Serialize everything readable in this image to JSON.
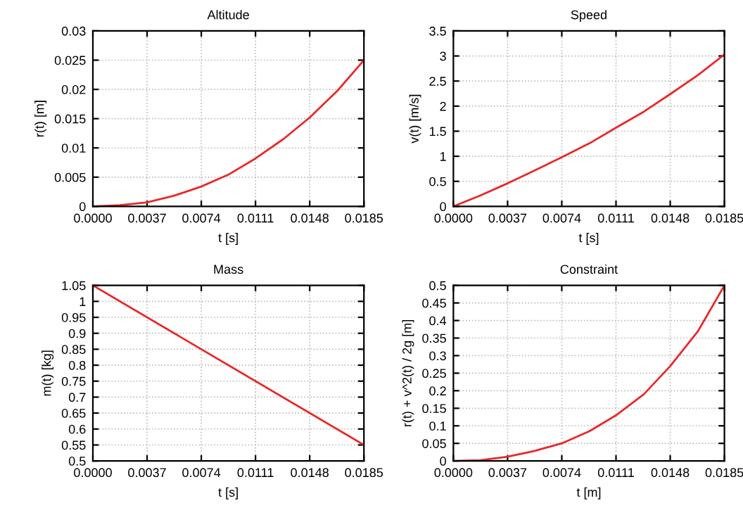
{
  "chart_data": [
    {
      "type": "line",
      "title": "Altitude",
      "xlabel": "t [s]",
      "ylabel": "r(t) [m]",
      "grid": true,
      "x": [
        0,
        0.00185,
        0.0037,
        0.0055,
        0.0074,
        0.0093,
        0.0111,
        0.013,
        0.0148,
        0.0167,
        0.0185
      ],
      "series": [
        {
          "color": "#e8292a",
          "values": [
            0,
            0.0002,
            0.0007,
            0.0018,
            0.0034,
            0.0055,
            0.0082,
            0.0115,
            0.0152,
            0.0198,
            0.025
          ]
        }
      ],
      "xlim": [
        0,
        0.0185
      ],
      "xticks": [
        {
          "value": 0,
          "label": "0.0000"
        },
        {
          "value": 0.0037,
          "label": "0.0037"
        },
        {
          "value": 0.0074,
          "label": "0.0074"
        },
        {
          "value": 0.0111,
          "label": "0.0111"
        },
        {
          "value": 0.0148,
          "label": "0.0148"
        },
        {
          "value": 0.0185,
          "label": "0.0185"
        }
      ],
      "ylim": [
        0,
        0.03
      ],
      "yticks": [
        0,
        0.005,
        0.01,
        0.015,
        0.02,
        0.025,
        0.03
      ]
    },
    {
      "type": "line",
      "title": "Speed",
      "xlabel": "t [s]",
      "ylabel": "v(t) [m/s]",
      "grid": true,
      "x": [
        0,
        0.00185,
        0.0037,
        0.0055,
        0.0074,
        0.0093,
        0.0111,
        0.013,
        0.0148,
        0.0167,
        0.0185
      ],
      "series": [
        {
          "color": "#e8292a",
          "values": [
            0,
            0.22,
            0.46,
            0.71,
            0.98,
            1.26,
            1.57,
            1.89,
            2.24,
            2.62,
            3.03
          ]
        }
      ],
      "xlim": [
        0,
        0.0185
      ],
      "xticks": [
        {
          "value": 0,
          "label": "0.0000"
        },
        {
          "value": 0.0037,
          "label": "0.0037"
        },
        {
          "value": 0.0074,
          "label": "0.0074"
        },
        {
          "value": 0.0111,
          "label": "0.0111"
        },
        {
          "value": 0.0148,
          "label": "0.0148"
        },
        {
          "value": 0.0185,
          "label": "0.0185"
        }
      ],
      "ylim": [
        0,
        3.5
      ],
      "yticks": [
        0,
        0.5,
        1,
        1.5,
        2,
        2.5,
        3,
        3.5
      ]
    },
    {
      "type": "line",
      "title": "Mass",
      "xlabel": "t [s]",
      "ylabel": "m(t) [kg]",
      "grid": true,
      "x": [
        0,
        0.0185
      ],
      "series": [
        {
          "color": "#e8292a",
          "values": [
            1.05,
            0.55
          ]
        }
      ],
      "xlim": [
        0,
        0.0185
      ],
      "xticks": [
        {
          "value": 0,
          "label": "0.0000"
        },
        {
          "value": 0.0037,
          "label": "0.0037"
        },
        {
          "value": 0.0074,
          "label": "0.0074"
        },
        {
          "value": 0.0111,
          "label": "0.0111"
        },
        {
          "value": 0.0148,
          "label": "0.0148"
        },
        {
          "value": 0.0185,
          "label": "0.0185"
        }
      ],
      "ylim": [
        0.5,
        1.05
      ],
      "yticks": [
        0.5,
        0.55,
        0.6,
        0.65,
        0.7,
        0.75,
        0.8,
        0.85,
        0.9,
        0.95,
        1,
        1.05
      ]
    },
    {
      "type": "line",
      "title": "Constraint",
      "xlabel": "t [m]",
      "ylabel": "r(t) + v^2(t) / 2g [m]",
      "grid": true,
      "x": [
        0,
        0.00185,
        0.0037,
        0.0055,
        0.0074,
        0.0093,
        0.0111,
        0.013,
        0.0148,
        0.0167,
        0.0185
      ],
      "series": [
        {
          "color": "#e8292a",
          "values": [
            0,
            0.002,
            0.012,
            0.028,
            0.05,
            0.085,
            0.13,
            0.19,
            0.27,
            0.37,
            0.5
          ]
        }
      ],
      "xlim": [
        0,
        0.0185
      ],
      "xticks": [
        {
          "value": 0,
          "label": "0.0000"
        },
        {
          "value": 0.0037,
          "label": "0.0037"
        },
        {
          "value": 0.0074,
          "label": "0.0074"
        },
        {
          "value": 0.0111,
          "label": "0.0111"
        },
        {
          "value": 0.0148,
          "label": "0.0148"
        },
        {
          "value": 0.0185,
          "label": "0.0185"
        }
      ],
      "ylim": [
        0,
        0.5
      ],
      "yticks": [
        0,
        0.05,
        0.1,
        0.15,
        0.2,
        0.25,
        0.3,
        0.35,
        0.4,
        0.45,
        0.5
      ]
    }
  ]
}
